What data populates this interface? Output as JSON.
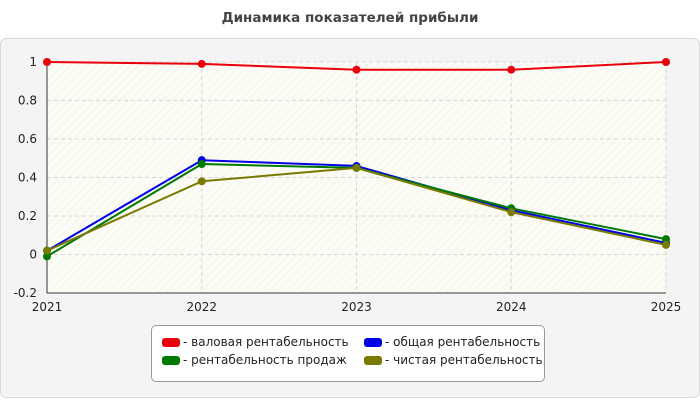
{
  "chart_data": {
    "type": "line",
    "title": "Динамика показателей прибыли",
    "xlabel": "",
    "ylabel": "",
    "x": [
      "2021",
      "2022",
      "2023",
      "2024",
      "2025"
    ],
    "ylim": [
      -0.2,
      1
    ],
    "yticks": [
      "1",
      "0.8",
      "0.6",
      "0.4",
      "0.2",
      "0",
      "-0.2"
    ],
    "ytick_values": [
      1,
      0.8,
      0.6,
      0.4,
      0.2,
      0,
      -0.2
    ],
    "grid": true,
    "legend_position": "bottom-center",
    "series": [
      {
        "name": "- валовая рентабельность",
        "color": "#e8000b",
        "values": [
          1.0,
          0.99,
          0.96,
          0.96,
          1.0
        ]
      },
      {
        "name": "- общая рентабельность",
        "color": "#0000e6",
        "values": [
          0.02,
          0.49,
          0.46,
          0.23,
          0.06
        ]
      },
      {
        "name": "- рентабельность продаж",
        "color": "#007a00",
        "values": [
          -0.01,
          0.47,
          0.45,
          0.24,
          0.08
        ]
      },
      {
        "name": "- чистая рентабельность",
        "color": "#7a7a00",
        "values": [
          0.02,
          0.38,
          0.45,
          0.22,
          0.05
        ]
      }
    ]
  }
}
